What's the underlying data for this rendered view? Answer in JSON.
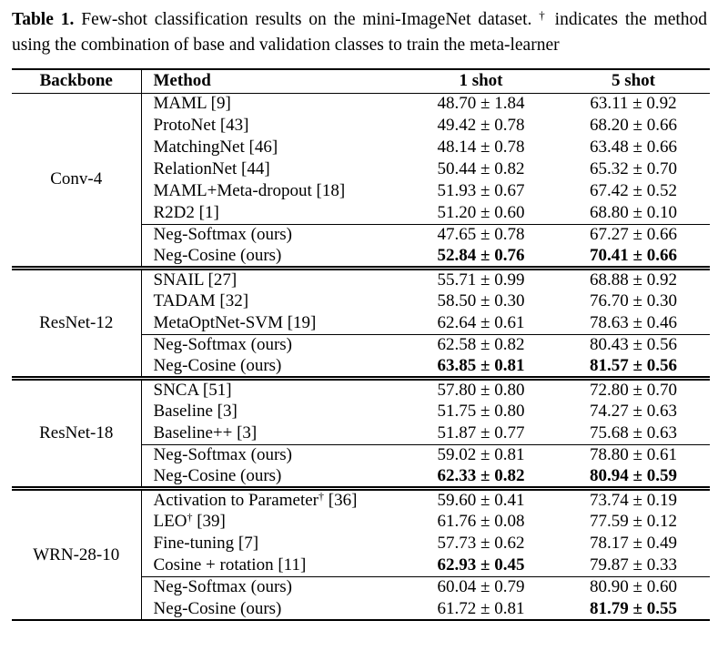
{
  "caption": {
    "label": "Table 1.",
    "before_dagger": "Few-shot classification results on the mini-ImageNet dataset.",
    "dagger": "†",
    "after_dagger": "indicates the method using the combination of base and validation classes to train the meta-learner"
  },
  "table": {
    "columns": [
      "Backbone",
      "Method",
      "1 shot",
      "5 shot"
    ],
    "sections": [
      {
        "backbone": "Conv-4",
        "rows": [
          {
            "method": "MAML [9]",
            "one_shot": "48.70 ± 1.84",
            "five_shot": "63.11 ± 0.92"
          },
          {
            "method": "ProtoNet [43]",
            "one_shot": "49.42 ± 0.78",
            "five_shot": "68.20 ± 0.66"
          },
          {
            "method": "MatchingNet [46]",
            "one_shot": "48.14 ± 0.78",
            "five_shot": "63.48 ± 0.66"
          },
          {
            "method": "RelationNet [44]",
            "one_shot": "50.44 ± 0.82",
            "five_shot": "65.32 ± 0.70"
          },
          {
            "method": "MAML+Meta-dropout [18]",
            "one_shot": "51.93 ± 0.67",
            "five_shot": "67.42 ± 0.52"
          },
          {
            "method": "R2D2 [1]",
            "one_shot": "51.20 ± 0.60",
            "five_shot": "68.80 ± 0.10"
          },
          {
            "method": "Neg-Softmax (ours)",
            "one_shot": "47.65 ± 0.78",
            "five_shot": "67.27 ± 0.66",
            "rule_above": true
          },
          {
            "method": "Neg-Cosine (ours)",
            "one_shot": "52.84 ± 0.76",
            "five_shot": "70.41 ± 0.66",
            "one_shot_bold": true,
            "five_shot_bold": true
          }
        ]
      },
      {
        "backbone": "ResNet-12",
        "rows": [
          {
            "method": "SNAIL [27]",
            "one_shot": "55.71 ± 0.99",
            "five_shot": "68.88 ± 0.92"
          },
          {
            "method": "TADAM [32]",
            "one_shot": "58.50 ± 0.30",
            "five_shot": "76.70 ± 0.30"
          },
          {
            "method": "MetaOptNet-SVM [19]",
            "one_shot": "62.64 ± 0.61",
            "five_shot": "78.63 ± 0.46"
          },
          {
            "method": "Neg-Softmax (ours)",
            "one_shot": "62.58 ± 0.82",
            "five_shot": "80.43 ± 0.56",
            "rule_above": true
          },
          {
            "method": "Neg-Cosine (ours)",
            "one_shot": "63.85 ± 0.81",
            "five_shot": "81.57 ± 0.56",
            "one_shot_bold": true,
            "five_shot_bold": true
          }
        ]
      },
      {
        "backbone": "ResNet-18",
        "rows": [
          {
            "method": "SNCA [51]",
            "one_shot": "57.80 ± 0.80",
            "five_shot": "72.80 ± 0.70"
          },
          {
            "method": "Baseline [3]",
            "one_shot": "51.75 ± 0.80",
            "five_shot": "74.27 ± 0.63"
          },
          {
            "method": "Baseline++ [3]",
            "one_shot": "51.87 ± 0.77",
            "five_shot": "75.68 ± 0.63"
          },
          {
            "method": "Neg-Softmax (ours)",
            "one_shot": "59.02 ± 0.81",
            "five_shot": "78.80 ± 0.61",
            "rule_above": true
          },
          {
            "method": "Neg-Cosine (ours)",
            "one_shot": "62.33 ± 0.82",
            "five_shot": "80.94 ± 0.59",
            "one_shot_bold": true,
            "five_shot_bold": true
          }
        ]
      },
      {
        "backbone": "WRN-28-10",
        "rows": [
          {
            "method": "Activation to Parameter† [36]",
            "one_shot": "59.60 ± 0.41",
            "five_shot": "73.74 ± 0.19"
          },
          {
            "method": "LEO† [39]",
            "one_shot": "61.76 ± 0.08",
            "five_shot": "77.59 ± 0.12"
          },
          {
            "method": "Fine-tuning [7]",
            "one_shot": "57.73 ± 0.62",
            "five_shot": "78.17 ± 0.49"
          },
          {
            "method": "Cosine + rotation [11]",
            "one_shot": "62.93 ± 0.45",
            "five_shot": "79.87 ± 0.33",
            "one_shot_bold": true
          },
          {
            "method": "Neg-Softmax (ours)",
            "one_shot": "60.04 ± 0.79",
            "five_shot": "80.90 ± 0.60",
            "rule_above": true
          },
          {
            "method": "Neg-Cosine (ours)",
            "one_shot": "61.72 ± 0.81",
            "five_shot": "81.79 ± 0.55",
            "five_shot_bold": true
          }
        ]
      }
    ]
  }
}
